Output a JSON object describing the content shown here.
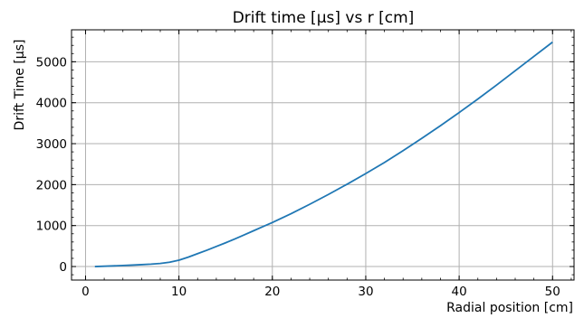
{
  "chart_data": {
    "type": "line",
    "title": "Drift time [μs] vs r [cm]",
    "xlabel": "Radial position [cm]",
    "ylabel": "Drift Time [μs]",
    "xlim": [
      -1.5,
      52.3
    ],
    "ylim": [
      -330,
      5780
    ],
    "xticks": [
      0,
      10,
      20,
      30,
      40,
      50
    ],
    "yticks": [
      0,
      1000,
      2000,
      3000,
      4000,
      5000
    ],
    "x_minor_step": 2,
    "y_minor_step": 200,
    "grid": true,
    "line_color": "#1f77b4",
    "series": [
      {
        "x": [
          1,
          2,
          3,
          4,
          5,
          6,
          7,
          8,
          9,
          10,
          11,
          12,
          13,
          14,
          15,
          16,
          17,
          18,
          19,
          20,
          22,
          24,
          26,
          28,
          30,
          32,
          34,
          36,
          38,
          40,
          42,
          44,
          46,
          48,
          50
        ],
        "values": [
          0,
          8,
          16,
          25,
          35,
          46,
          58,
          75,
          105,
          155,
          230,
          315,
          400,
          490,
          580,
          675,
          775,
          875,
          975,
          1075,
          1290,
          1520,
          1760,
          2010,
          2270,
          2540,
          2830,
          3130,
          3440,
          3760,
          4090,
          4430,
          4780,
          5130,
          5480
        ]
      }
    ]
  }
}
